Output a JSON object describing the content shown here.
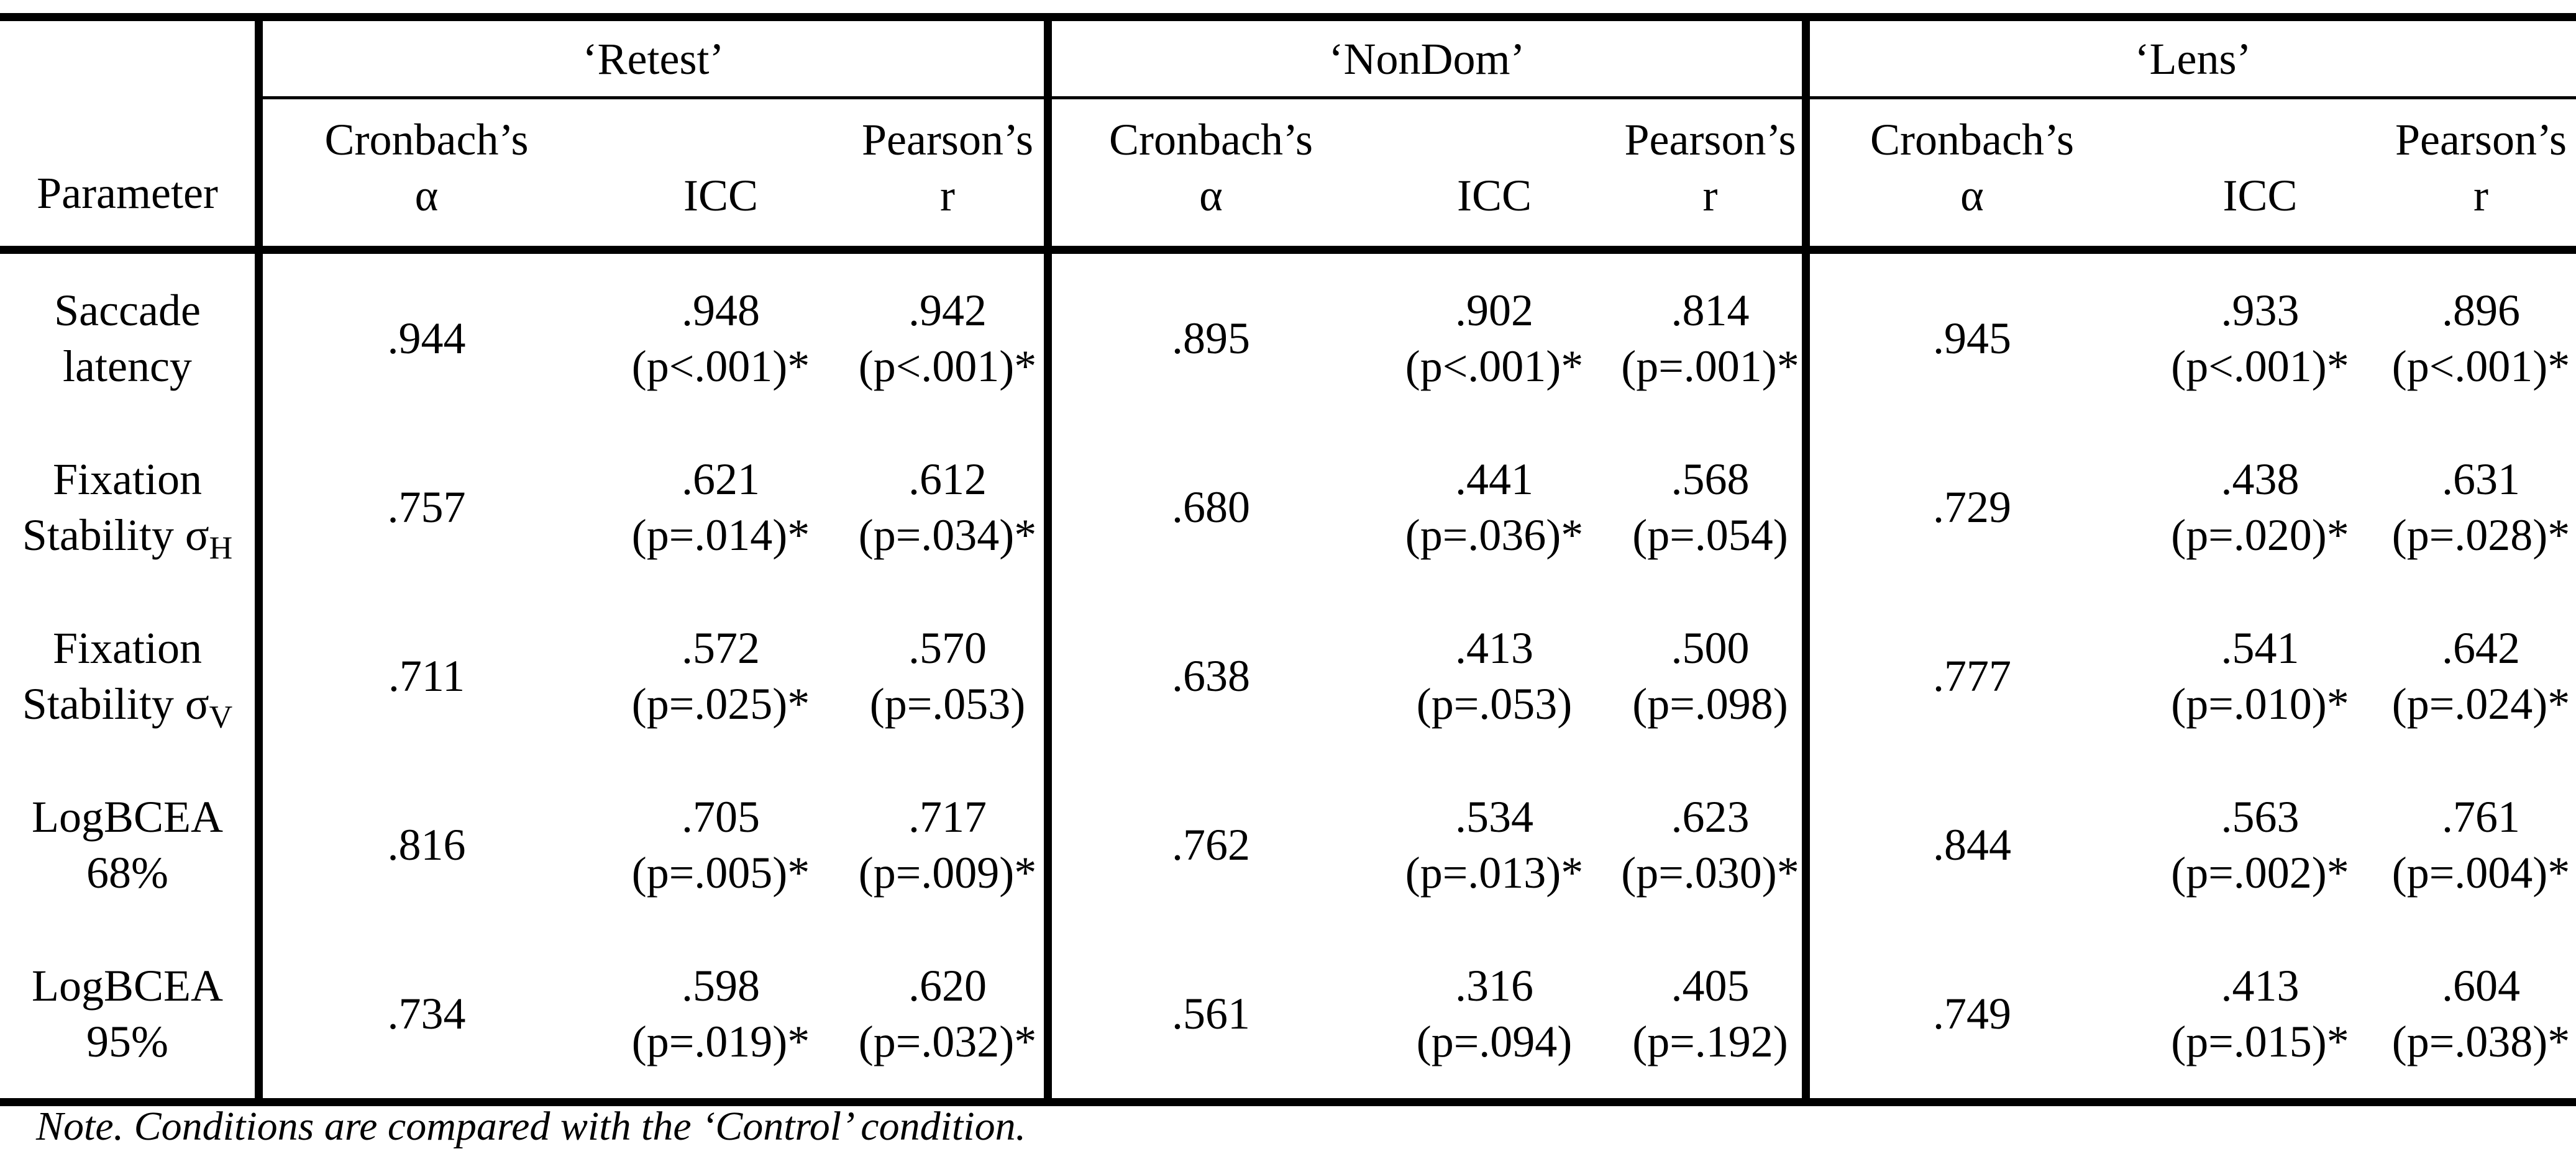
{
  "table": {
    "param_header": "Parameter",
    "groups": [
      {
        "name": "‘Retest’"
      },
      {
        "name": "‘NonDom’"
      },
      {
        "name": "‘Lens’"
      }
    ],
    "col_headers": {
      "alpha_line1": "Cronbach’s",
      "alpha_line2": "α",
      "icc": "ICC",
      "r_line1": "Pearson’s",
      "r_line2": "r"
    },
    "rows": [
      {
        "param_line1": "Saccade",
        "param_line2": "latency",
        "param_sub": "",
        "retest": {
          "alpha": ".944",
          "icc": ".948",
          "icc_p": "(p<.001)*",
          "r": ".942",
          "r_p": "(p<.001)*"
        },
        "nondom": {
          "alpha": ".895",
          "icc": ".902",
          "icc_p": "(p<.001)*",
          "r": ".814",
          "r_p": "(p=.001)*"
        },
        "lens": {
          "alpha": ".945",
          "icc": ".933",
          "icc_p": "(p<.001)*",
          "r": ".896",
          "r_p": "(p<.001)*"
        }
      },
      {
        "param_line1": "Fixation",
        "param_line2": "Stability σ",
        "param_sub": "H",
        "retest": {
          "alpha": ".757",
          "icc": ".621",
          "icc_p": "(p=.014)*",
          "r": ".612",
          "r_p": "(p=.034)*"
        },
        "nondom": {
          "alpha": ".680",
          "icc": ".441",
          "icc_p": "(p=.036)*",
          "r": ".568",
          "r_p": "(p=.054)"
        },
        "lens": {
          "alpha": ".729",
          "icc": ".438",
          "icc_p": "(p=.020)*",
          "r": ".631",
          "r_p": "(p=.028)*"
        }
      },
      {
        "param_line1": "Fixation",
        "param_line2": "Stability σ",
        "param_sub": "V",
        "retest": {
          "alpha": ".711",
          "icc": ".572",
          "icc_p": "(p=.025)*",
          "r": ".570",
          "r_p": "(p=.053)"
        },
        "nondom": {
          "alpha": ".638",
          "icc": ".413",
          "icc_p": "(p=.053)",
          "r": ".500",
          "r_p": "(p=.098)"
        },
        "lens": {
          "alpha": ".777",
          "icc": ".541",
          "icc_p": "(p=.010)*",
          "r": ".642",
          "r_p": "(p=.024)*"
        }
      },
      {
        "param_line1": "LogBCEA",
        "param_line2": "68%",
        "param_sub": "",
        "retest": {
          "alpha": ".816",
          "icc": ".705",
          "icc_p": "(p=.005)*",
          "r": ".717",
          "r_p": "(p=.009)*"
        },
        "nondom": {
          "alpha": ".762",
          "icc": ".534",
          "icc_p": "(p=.013)*",
          "r": ".623",
          "r_p": "(p=.030)*"
        },
        "lens": {
          "alpha": ".844",
          "icc": ".563",
          "icc_p": "(p=.002)*",
          "r": ".761",
          "r_p": "(p=.004)*"
        }
      },
      {
        "param_line1": "LogBCEA",
        "param_line2": "95%",
        "param_sub": "",
        "retest": {
          "alpha": ".734",
          "icc": ".598",
          "icc_p": "(p=.019)*",
          "r": ".620",
          "r_p": "(p=.032)*"
        },
        "nondom": {
          "alpha": ".561",
          "icc": ".316",
          "icc_p": "(p=.094)",
          "r": ".405",
          "r_p": "(p=.192)"
        },
        "lens": {
          "alpha": ".749",
          "icc": ".413",
          "icc_p": "(p=.015)*",
          "r": ".604",
          "r_p": "(p=.038)*"
        }
      }
    ],
    "note": "Note. Conditions are compared with the ‘Control’ condition."
  }
}
